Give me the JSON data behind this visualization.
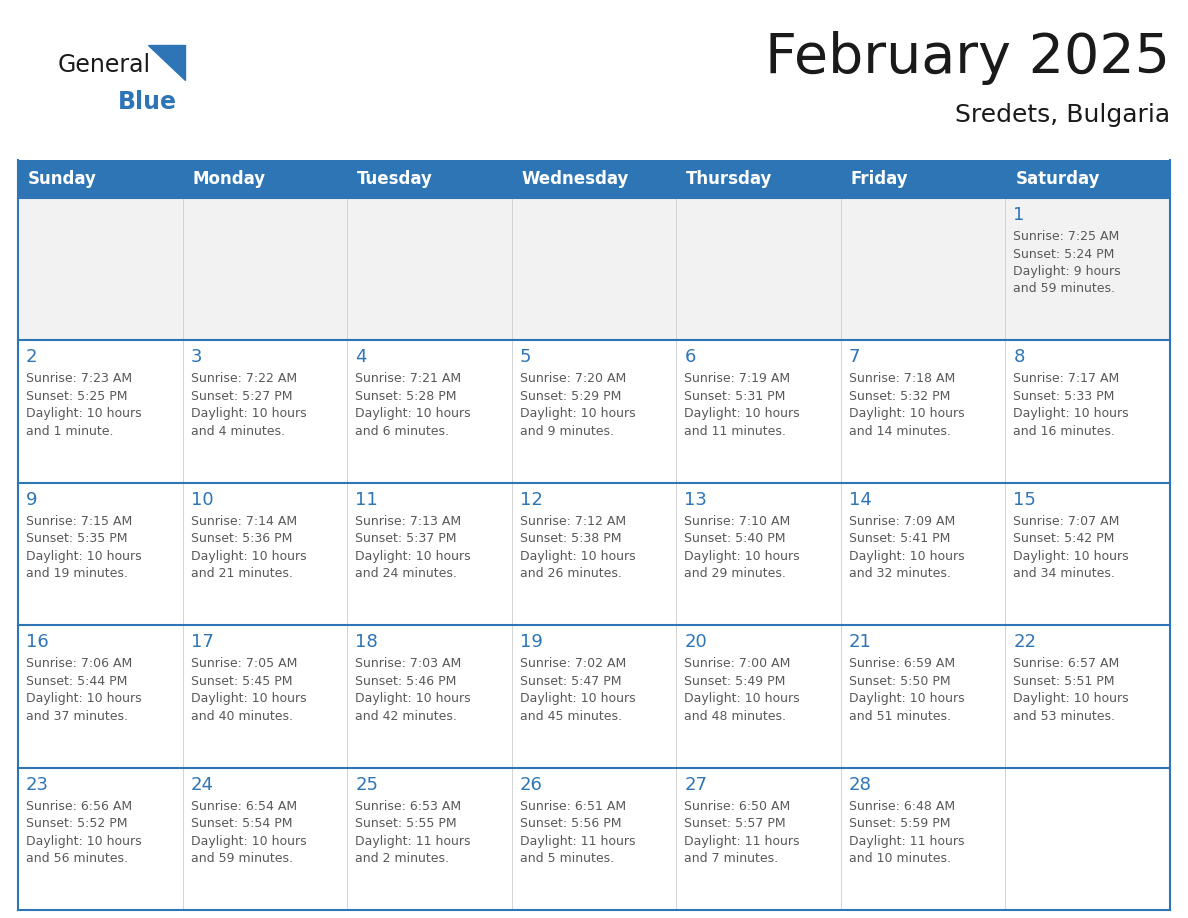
{
  "title": "February 2025",
  "subtitle": "Sredets, Bulgaria",
  "header_bg": "#2E75B6",
  "header_text_color": "#FFFFFF",
  "cell_bg": "#FFFFFF",
  "row1_bg": "#F2F2F2",
  "border_color": "#2E75B6",
  "text_color": "#595959",
  "day_number_color": "#2E75B6",
  "days_of_week": [
    "Sunday",
    "Monday",
    "Tuesday",
    "Wednesday",
    "Thursday",
    "Friday",
    "Saturday"
  ],
  "weeks": [
    [
      {
        "day": null,
        "info": null
      },
      {
        "day": null,
        "info": null
      },
      {
        "day": null,
        "info": null
      },
      {
        "day": null,
        "info": null
      },
      {
        "day": null,
        "info": null
      },
      {
        "day": null,
        "info": null
      },
      {
        "day": 1,
        "info": "Sunrise: 7:25 AM\nSunset: 5:24 PM\nDaylight: 9 hours\nand 59 minutes."
      }
    ],
    [
      {
        "day": 2,
        "info": "Sunrise: 7:23 AM\nSunset: 5:25 PM\nDaylight: 10 hours\nand 1 minute."
      },
      {
        "day": 3,
        "info": "Sunrise: 7:22 AM\nSunset: 5:27 PM\nDaylight: 10 hours\nand 4 minutes."
      },
      {
        "day": 4,
        "info": "Sunrise: 7:21 AM\nSunset: 5:28 PM\nDaylight: 10 hours\nand 6 minutes."
      },
      {
        "day": 5,
        "info": "Sunrise: 7:20 AM\nSunset: 5:29 PM\nDaylight: 10 hours\nand 9 minutes."
      },
      {
        "day": 6,
        "info": "Sunrise: 7:19 AM\nSunset: 5:31 PM\nDaylight: 10 hours\nand 11 minutes."
      },
      {
        "day": 7,
        "info": "Sunrise: 7:18 AM\nSunset: 5:32 PM\nDaylight: 10 hours\nand 14 minutes."
      },
      {
        "day": 8,
        "info": "Sunrise: 7:17 AM\nSunset: 5:33 PM\nDaylight: 10 hours\nand 16 minutes."
      }
    ],
    [
      {
        "day": 9,
        "info": "Sunrise: 7:15 AM\nSunset: 5:35 PM\nDaylight: 10 hours\nand 19 minutes."
      },
      {
        "day": 10,
        "info": "Sunrise: 7:14 AM\nSunset: 5:36 PM\nDaylight: 10 hours\nand 21 minutes."
      },
      {
        "day": 11,
        "info": "Sunrise: 7:13 AM\nSunset: 5:37 PM\nDaylight: 10 hours\nand 24 minutes."
      },
      {
        "day": 12,
        "info": "Sunrise: 7:12 AM\nSunset: 5:38 PM\nDaylight: 10 hours\nand 26 minutes."
      },
      {
        "day": 13,
        "info": "Sunrise: 7:10 AM\nSunset: 5:40 PM\nDaylight: 10 hours\nand 29 minutes."
      },
      {
        "day": 14,
        "info": "Sunrise: 7:09 AM\nSunset: 5:41 PM\nDaylight: 10 hours\nand 32 minutes."
      },
      {
        "day": 15,
        "info": "Sunrise: 7:07 AM\nSunset: 5:42 PM\nDaylight: 10 hours\nand 34 minutes."
      }
    ],
    [
      {
        "day": 16,
        "info": "Sunrise: 7:06 AM\nSunset: 5:44 PM\nDaylight: 10 hours\nand 37 minutes."
      },
      {
        "day": 17,
        "info": "Sunrise: 7:05 AM\nSunset: 5:45 PM\nDaylight: 10 hours\nand 40 minutes."
      },
      {
        "day": 18,
        "info": "Sunrise: 7:03 AM\nSunset: 5:46 PM\nDaylight: 10 hours\nand 42 minutes."
      },
      {
        "day": 19,
        "info": "Sunrise: 7:02 AM\nSunset: 5:47 PM\nDaylight: 10 hours\nand 45 minutes."
      },
      {
        "day": 20,
        "info": "Sunrise: 7:00 AM\nSunset: 5:49 PM\nDaylight: 10 hours\nand 48 minutes."
      },
      {
        "day": 21,
        "info": "Sunrise: 6:59 AM\nSunset: 5:50 PM\nDaylight: 10 hours\nand 51 minutes."
      },
      {
        "day": 22,
        "info": "Sunrise: 6:57 AM\nSunset: 5:51 PM\nDaylight: 10 hours\nand 53 minutes."
      }
    ],
    [
      {
        "day": 23,
        "info": "Sunrise: 6:56 AM\nSunset: 5:52 PM\nDaylight: 10 hours\nand 56 minutes."
      },
      {
        "day": 24,
        "info": "Sunrise: 6:54 AM\nSunset: 5:54 PM\nDaylight: 10 hours\nand 59 minutes."
      },
      {
        "day": 25,
        "info": "Sunrise: 6:53 AM\nSunset: 5:55 PM\nDaylight: 11 hours\nand 2 minutes."
      },
      {
        "day": 26,
        "info": "Sunrise: 6:51 AM\nSunset: 5:56 PM\nDaylight: 11 hours\nand 5 minutes."
      },
      {
        "day": 27,
        "info": "Sunrise: 6:50 AM\nSunset: 5:57 PM\nDaylight: 11 hours\nand 7 minutes."
      },
      {
        "day": 28,
        "info": "Sunrise: 6:48 AM\nSunset: 5:59 PM\nDaylight: 11 hours\nand 10 minutes."
      },
      {
        "day": null,
        "info": null
      }
    ]
  ],
  "logo_triangle_color": "#2E75B6",
  "logo_general_color": "#1a1a1a",
  "logo_blue_color": "#2E75B6"
}
